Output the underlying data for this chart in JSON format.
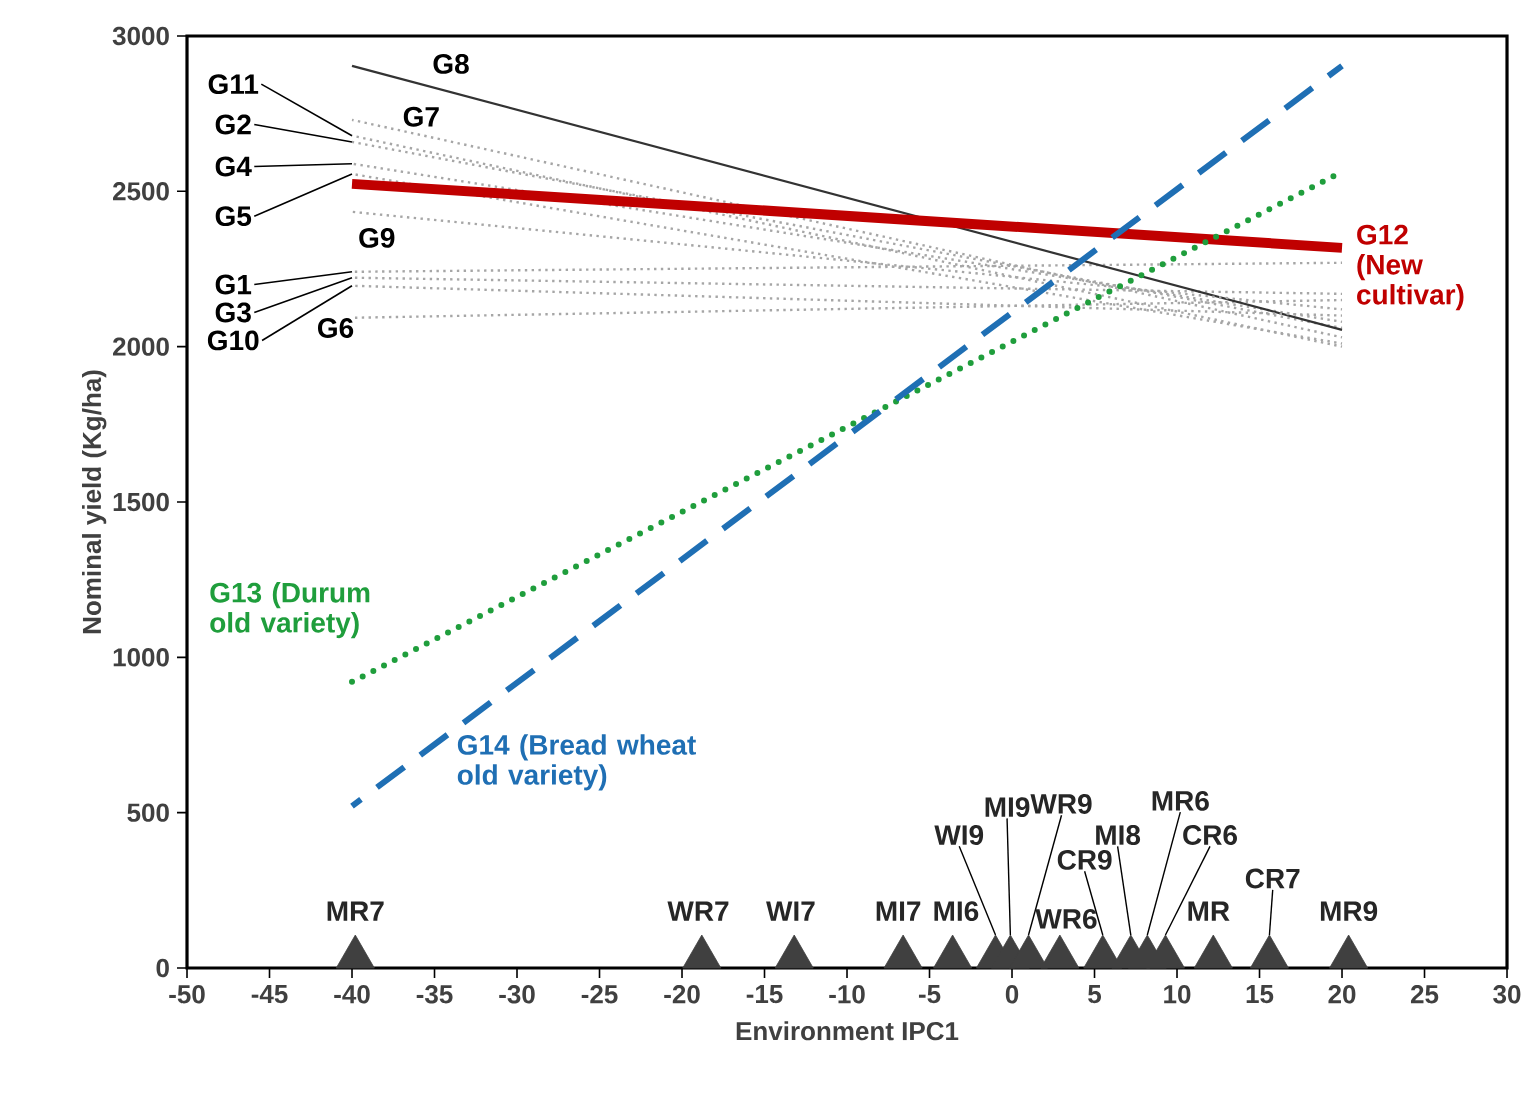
{
  "chart_data": {
    "type": "line",
    "xlabel": "Environment IPC1",
    "ylabel": "Nominal yield (Kg/ha)",
    "xlim": [
      -50,
      30
    ],
    "xticks": [
      -50,
      -45,
      -40,
      -35,
      -30,
      -25,
      -20,
      -15,
      -10,
      -5,
      0,
      5,
      10,
      15,
      20,
      25,
      30
    ],
    "ylim": [
      0,
      3000
    ],
    "yticks": [
      0,
      500,
      1000,
      1500,
      2000,
      2500,
      3000
    ],
    "grid": false,
    "series": [
      {
        "name": "G1",
        "color": "#a6a6a6",
        "line_style": "dotted",
        "marker": "none",
        "x": [
          -40,
          20
        ],
        "values": [
          2241,
          2270
        ]
      },
      {
        "name": "G2",
        "color": "#a6a6a6",
        "line_style": "dotted",
        "marker": "none",
        "x": [
          -40,
          20
        ],
        "values": [
          2659,
          2060
        ]
      },
      {
        "name": "G3",
        "color": "#a6a6a6",
        "line_style": "dotted",
        "marker": "none",
        "x": [
          -40,
          20
        ],
        "values": [
          2222,
          2170
        ]
      },
      {
        "name": "G4",
        "color": "#a6a6a6",
        "line_style": "dotted",
        "marker": "none",
        "x": [
          -40,
          20
        ],
        "values": [
          2589,
          2080
        ]
      },
      {
        "name": "G5",
        "color": "#a6a6a6",
        "line_style": "dotted",
        "marker": "none",
        "x": [
          -40,
          20
        ],
        "values": [
          2556,
          2010
        ]
      },
      {
        "name": "G6",
        "color": "#a6a6a6",
        "line_style": "dotted",
        "marker": "none",
        "x": [
          -40,
          20
        ],
        "values": [
          2093,
          2150
        ]
      },
      {
        "name": "G7",
        "color": "#a6a6a6",
        "line_style": "dotted",
        "marker": "none",
        "x": [
          -40,
          20
        ],
        "values": [
          2730,
          2030
        ]
      },
      {
        "name": "G8",
        "color": "#333333",
        "line_style": "solid",
        "marker": "none",
        "x": [
          -40,
          20
        ],
        "values": [
          2904,
          2054
        ]
      },
      {
        "name": "G9",
        "color": "#a6a6a6",
        "line_style": "dotted",
        "marker": "none",
        "x": [
          -40,
          20
        ],
        "values": [
          2434,
          2120
        ]
      },
      {
        "name": "G10",
        "color": "#a6a6a6",
        "line_style": "dotted",
        "marker": "none",
        "x": [
          -40,
          20
        ],
        "values": [
          2196,
          2100
        ]
      },
      {
        "name": "G11",
        "color": "#a6a6a6",
        "line_style": "dotted",
        "marker": "none",
        "x": [
          -40,
          20
        ],
        "values": [
          2679,
          2000
        ]
      },
      {
        "name": "G12 (New cultivar)",
        "color": "#c00000",
        "line_style": "solid",
        "marker": "none",
        "x": [
          -40,
          20
        ],
        "values": [
          2524,
          2318
        ]
      },
      {
        "name": "G13 (Durum old variety)",
        "color": "#1f9e3c",
        "line_style": "dotted",
        "marker": "none",
        "x": [
          -40,
          20
        ],
        "values": [
          921,
          2563
        ]
      },
      {
        "name": "G14 (Bread wheat old variety)",
        "color": "#1f6fb4",
        "line_style": "dashed",
        "marker": "none",
        "x": [
          -40,
          20
        ],
        "values": [
          521,
          2904
        ]
      },
      {
        "type": "scatter",
        "color": "#404040",
        "marker": "triangle",
        "x": [
          -39.8,
          -18.8,
          -13.2,
          -6.6,
          -3.6,
          -1.0,
          -0.1,
          1.0,
          2.9,
          5.5,
          7.2,
          8.2,
          9.3,
          12.2,
          15.6,
          20.4
        ],
        "values": [
          53,
          53,
          53,
          53,
          53,
          53,
          53,
          53,
          53,
          53,
          53,
          53,
          53,
          53,
          53,
          53
        ]
      }
    ],
    "annotations": [
      {
        "text": "MR7",
        "x": -39.8,
        "y": 53
      },
      {
        "text": "WR7",
        "x": -18.8,
        "y": 53
      },
      {
        "text": "WI7",
        "x": -13.2,
        "y": 53
      },
      {
        "text": "MI7",
        "x": -6.6,
        "y": 53
      },
      {
        "text": "MI6",
        "x": -3.6,
        "y": 53
      },
      {
        "text": "WI9",
        "x": -1.0,
        "y": 53
      },
      {
        "text": "MI9",
        "x": -0.1,
        "y": 53
      },
      {
        "text": "WR9",
        "x": 1.0,
        "y": 53
      },
      {
        "text": "WR6",
        "x": 2.9,
        "y": 53
      },
      {
        "text": "CR9",
        "x": 5.5,
        "y": 53
      },
      {
        "text": "MI8",
        "x": 7.2,
        "y": 53
      },
      {
        "text": "MR6",
        "x": 8.2,
        "y": 53
      },
      {
        "text": "CR6",
        "x": 9.3,
        "y": 53
      },
      {
        "text": "MR",
        "x": 12.2,
        "y": 53
      },
      {
        "text": "CR7",
        "x": 15.6,
        "y": 53
      },
      {
        "text": "MR9",
        "x": 20.4,
        "y": 53
      }
    ]
  }
}
